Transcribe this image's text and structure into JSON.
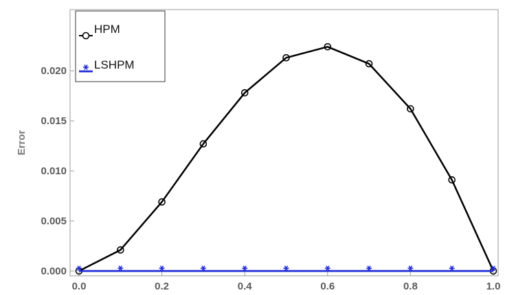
{
  "chart_data": {
    "type": "line",
    "title": "",
    "xlabel": "",
    "ylabel": "Error",
    "xlim": [
      0,
      1
    ],
    "ylim": [
      -0.0005,
      0.0235
    ],
    "xticks": [
      "0.0",
      "0.2",
      "0.4",
      "0.6",
      "0.8",
      "1.0"
    ],
    "yticks": [
      "0.000",
      "0.005",
      "0.010",
      "0.015",
      "0.020"
    ],
    "grid": false,
    "legend_position": "top-left",
    "x": [
      0.0,
      0.1,
      0.2,
      0.3,
      0.4,
      0.5,
      0.6,
      0.7,
      0.8,
      0.9,
      1.0
    ],
    "series": [
      {
        "name": "HPM",
        "color": "#000000",
        "marker": "circle",
        "values": [
          0.0,
          0.0021,
          0.0069,
          0.0127,
          0.0178,
          0.0213,
          0.0224,
          0.0207,
          0.0162,
          0.0091,
          0.0
        ]
      },
      {
        "name": "LSHPM",
        "color": "#1f2bd6",
        "marker": "star",
        "values": [
          0.0,
          0.0,
          0.0,
          0.0,
          0.0,
          0.0,
          0.0,
          0.0,
          0.0,
          0.0,
          0.0
        ]
      }
    ]
  }
}
